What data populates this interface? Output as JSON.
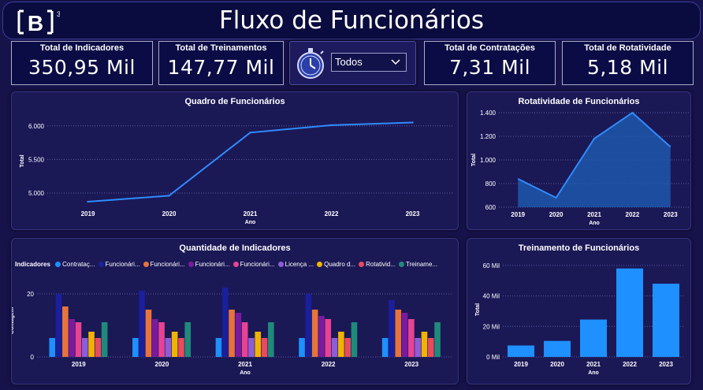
{
  "header": {
    "logo_text": "[B]",
    "logo_sup": "3",
    "title": "Fluxo de Funcionários"
  },
  "kpis": [
    {
      "label": "Total de Indicadores",
      "value": "350,95 Mil"
    },
    {
      "label": "Total de Treinamentos",
      "value": "147,77 Mil"
    },
    {
      "label": "Total de Contratações",
      "value": "7,31 Mil"
    },
    {
      "label": "Total de Rotatividade",
      "value": "5,18 Mil"
    }
  ],
  "filter": {
    "selected": "Todos"
  },
  "colors": {
    "line": "#2f8cff",
    "area": "#1f5fb8",
    "bar": "#1e90ff",
    "background": "#16124a"
  },
  "chart_data": [
    {
      "type": "line",
      "title": "Quadro de Funcionários",
      "xlabel": "Ano",
      "ylabel": "Total",
      "categories": [
        "2019",
        "2020",
        "2021",
        "2022",
        "2023"
      ],
      "values": [
        4870,
        4960,
        5900,
        6010,
        6050
      ],
      "yticks": [
        "5.000",
        "5.500",
        "6.000"
      ],
      "ylim": [
        4800,
        6150
      ]
    },
    {
      "type": "area",
      "title": "Rotatividade de Funcionários",
      "xlabel": "Ano",
      "ylabel": "Total",
      "categories": [
        "2019",
        "2020",
        "2021",
        "2022",
        "2023"
      ],
      "values": [
        840,
        680,
        1180,
        1400,
        1110
      ],
      "yticks": [
        "600",
        "800",
        "1.000",
        "1.200",
        "1.400"
      ],
      "ylim": [
        600,
        1400
      ]
    },
    {
      "type": "bar",
      "title": "Quantidade de Indicadores",
      "xlabel": "Ano",
      "ylabel": "Contagem",
      "legend_title": "Indicadores",
      "legend": [
        "Contrataç...",
        "Funcionári...",
        "Funcionári...",
        "Funcionári...",
        "Funcionári...",
        "Licença ...",
        "Quadro d...",
        "Rotativid...",
        "Treiname..."
      ],
      "categories": [
        "2019",
        "2020",
        "2021",
        "2022",
        "2023"
      ],
      "series_colors": [
        "#1e90ff",
        "#1a1f9c",
        "#e8743b",
        "#7a1a9e",
        "#e84393",
        "#8e5cd6",
        "#f0b400",
        "#e84a5f",
        "#1f8a7a"
      ],
      "values": [
        [
          6,
          20,
          16,
          12,
          11,
          6,
          8,
          6,
          11
        ],
        [
          6,
          21,
          15,
          12,
          11,
          6,
          8,
          6,
          11
        ],
        [
          6,
          22,
          15,
          14,
          11,
          6,
          8,
          6,
          11
        ],
        [
          6,
          20,
          15,
          13,
          12,
          6,
          8,
          6,
          11
        ],
        [
          6,
          18,
          15,
          14,
          12,
          6,
          8,
          6,
          11
        ]
      ],
      "yticks": [
        "0",
        "20"
      ],
      "ylim": [
        0,
        23
      ]
    },
    {
      "type": "bar",
      "title": "Treinamento de Funcionários",
      "xlabel": "Ano",
      "ylabel": "Total",
      "categories": [
        "2019",
        "2020",
        "2021",
        "2022",
        "2023"
      ],
      "values": [
        7.5,
        10.5,
        24.5,
        58,
        48
      ],
      "yticks": [
        "0 Mil",
        "20 Mil",
        "40 Mil",
        "60 Mil"
      ],
      "ylim": [
        0,
        62
      ]
    }
  ]
}
